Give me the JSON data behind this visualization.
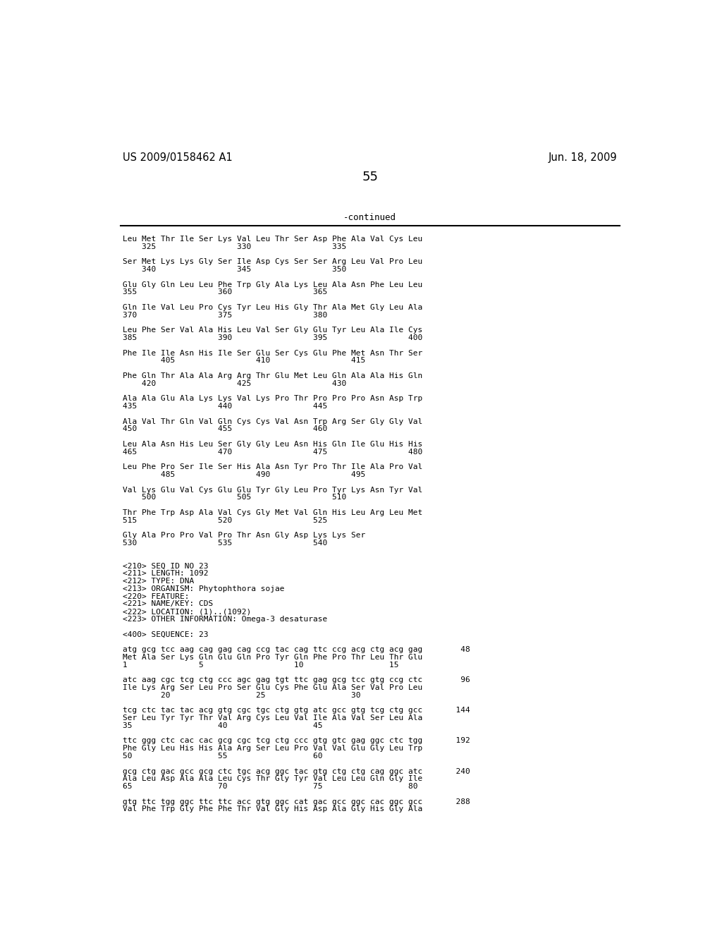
{
  "header_left": "US 2009/0158462 A1",
  "header_right": "Jun. 18, 2009",
  "page_number": "55",
  "continued_label": "-continued",
  "background_color": "#ffffff",
  "text_color": "#000000",
  "lines": [
    "Leu Met Thr Ile Ser Lys Val Leu Thr Ser Asp Phe Ala Val Cys Leu",
    "    325                 330                 335",
    "",
    "Ser Met Lys Lys Gly Ser Ile Asp Cys Ser Ser Arg Leu Val Pro Leu",
    "    340                 345                 350",
    "",
    "Glu Gly Gln Leu Leu Phe Trp Gly Ala Lys Leu Ala Asn Phe Leu Leu",
    "355                 360                 365",
    "",
    "Gln Ile Val Leu Pro Cys Tyr Leu His Gly Thr Ala Met Gly Leu Ala",
    "370                 375                 380",
    "",
    "Leu Phe Ser Val Ala His Leu Val Ser Gly Glu Tyr Leu Ala Ile Cys",
    "385                 390                 395                 400",
    "",
    "Phe Ile Ile Asn His Ile Ser Glu Ser Cys Glu Phe Met Asn Thr Ser",
    "        405                 410                 415",
    "",
    "Phe Gln Thr Ala Ala Arg Arg Thr Glu Met Leu Gln Ala Ala His Gln",
    "    420                 425                 430",
    "",
    "Ala Ala Glu Ala Lys Lys Val Lys Pro Thr Pro Pro Pro Asn Asp Trp",
    "435                 440                 445",
    "",
    "Ala Val Thr Gln Val Gln Cys Cys Val Asn Trp Arg Ser Gly Gly Val",
    "450                 455                 460",
    "",
    "Leu Ala Asn His Leu Ser Gly Gly Leu Asn His Gln Ile Glu His His",
    "465                 470                 475                 480",
    "",
    "Leu Phe Pro Ser Ile Ser His Ala Asn Tyr Pro Thr Ile Ala Pro Val",
    "        485                 490                 495",
    "",
    "Val Lys Glu Val Cys Glu Glu Tyr Gly Leu Pro Tyr Lys Asn Tyr Val",
    "    500                 505                 510",
    "",
    "Thr Phe Trp Asp Ala Val Cys Gly Met Val Gln His Leu Arg Leu Met",
    "515                 520                 525",
    "",
    "Gly Ala Pro Pro Val Pro Thr Asn Gly Asp Lys Lys Ser",
    "530                 535                 540",
    "",
    "",
    "<210> SEQ ID NO 23",
    "<211> LENGTH: 1092",
    "<212> TYPE: DNA",
    "<213> ORGANISM: Phytophthora sojae",
    "<220> FEATURE:",
    "<221> NAME/KEY: CDS",
    "<222> LOCATION: (1)..(1092)",
    "<223> OTHER INFORMATION: Omega-3 desaturase",
    "",
    "<400> SEQUENCE: 23",
    "",
    "atg gcg tcc aag cag gag cag ccg tac cag ttc ccg acg ctg acg gag        48",
    "Met Ala Ser Lys Gln Glu Gln Pro Tyr Gln Phe Pro Thr Leu Thr Glu",
    "1               5                   10                  15",
    "",
    "atc aag cgc tcg ctg ccc agc gag tgt ttc gag gcg tcc gtg ccg ctc        96",
    "Ile Lys Arg Ser Leu Pro Ser Glu Cys Phe Glu Ala Ser Val Pro Leu",
    "        20                  25                  30",
    "",
    "tcg ctc tac tac acg gtg cgc tgc ctg gtg atc gcc gtg tcg ctg gcc       144",
    "Ser Leu Tyr Tyr Thr Val Arg Cys Leu Val Ile Ala Val Ser Leu Ala",
    "35                  40                  45",
    "",
    "ttc ggg ctc cac cac gcg cgc tcg ctg ccc gtg gtc gag ggc ctc tgg       192",
    "Phe Gly Leu His His Ala Arg Ser Leu Pro Val Val Glu Gly Leu Trp",
    "50                  55                  60",
    "",
    "gcg ctg gac gcc gcg ctc tgc acg ggc tac gtg ctg ctg cag ggc atc       240",
    "Ala Leu Asp Ala Ala Leu Cys Thr Gly Tyr Val Leu Leu Gln Gly Ile",
    "65                  70                  75                  80",
    "",
    "gtg ttc tgg ggc ttc ttc acc gtg ggc cat gac gcc ggc cac ggc gcc       288",
    "Val Phe Trp Gly Phe Phe Thr Val Gly His Asp Ala Gly His Gly Ala"
  ]
}
